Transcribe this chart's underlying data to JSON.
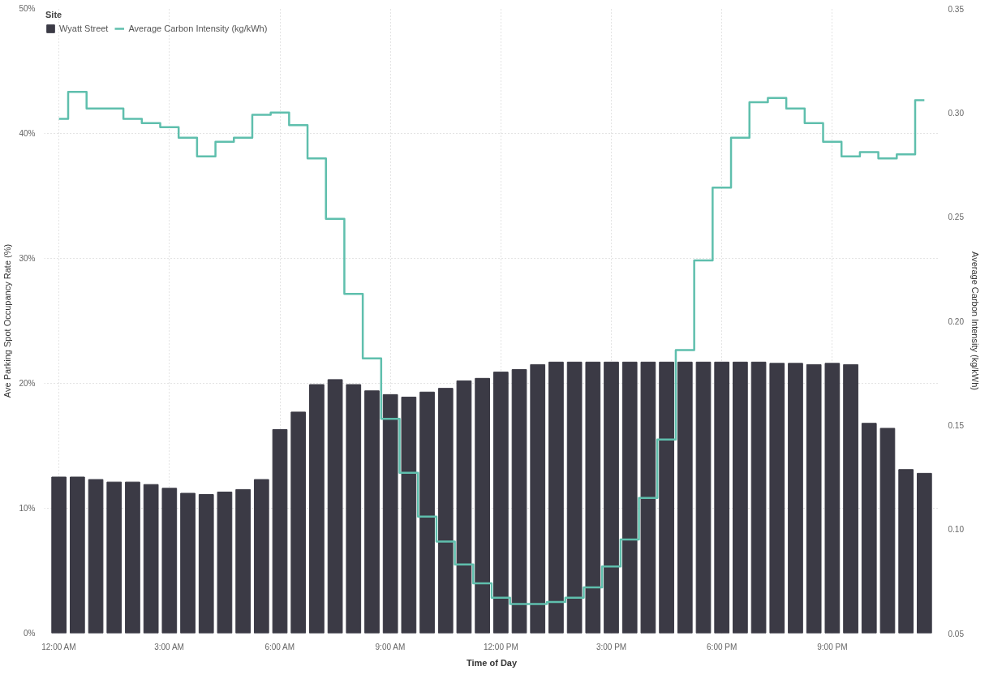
{
  "chart_data": {
    "type": "bar",
    "xlabel": "Time of Day",
    "ylabel": "Ave Parking Spot Occupancy Rate (%)",
    "y2label": "Average Carbon Intensity (kg/kWh)",
    "legend_title": "Site",
    "legend": "top left",
    "grid": true,
    "x": [
      0,
      0.5,
      1,
      1.5,
      2,
      2.5,
      3,
      3.5,
      4,
      4.5,
      5,
      5.5,
      6,
      6.5,
      7,
      7.5,
      8,
      8.5,
      9,
      9.5,
      10,
      10.5,
      11,
      11.5,
      12,
      12.5,
      13,
      13.5,
      14,
      14.5,
      15,
      15.5,
      16,
      16.5,
      17,
      17.5,
      18,
      18.5,
      19,
      19.5,
      20,
      20.5,
      21,
      21.5,
      22,
      22.5,
      23,
      23.5
    ],
    "xlim": [
      -0.4,
      23.9
    ],
    "xticks": [
      {
        "value": 0,
        "label": "12:00 AM"
      },
      {
        "value": 3,
        "label": "3:00 AM"
      },
      {
        "value": 6,
        "label": "6:00 AM"
      },
      {
        "value": 9,
        "label": "9:00 AM"
      },
      {
        "value": 12,
        "label": "12:00 PM"
      },
      {
        "value": 15,
        "label": "3:00 PM"
      },
      {
        "value": 18,
        "label": "6:00 PM"
      },
      {
        "value": 21,
        "label": "9:00 PM"
      }
    ],
    "ylim": [
      0,
      50
    ],
    "yticks": [
      {
        "value": 0,
        "label": "0%"
      },
      {
        "value": 10,
        "label": "10%"
      },
      {
        "value": 20,
        "label": "20%"
      },
      {
        "value": 30,
        "label": "30%"
      },
      {
        "value": 40,
        "label": "40%"
      },
      {
        "value": 50,
        "label": "50%"
      }
    ],
    "y2lim": [
      0.05,
      0.35
    ],
    "y2ticks": [
      {
        "value": 0.05,
        "label": "0.05"
      },
      {
        "value": 0.1,
        "label": "0.10"
      },
      {
        "value": 0.15,
        "label": "0.15"
      },
      {
        "value": 0.2,
        "label": "0.20"
      },
      {
        "value": 0.25,
        "label": "0.25"
      },
      {
        "value": 0.3,
        "label": "0.30"
      },
      {
        "value": 0.35,
        "label": "0.35"
      }
    ],
    "series": [
      {
        "name": "Wyatt Street",
        "color": "#3b3a45",
        "values": [
          12.5,
          12.5,
          12.3,
          12.1,
          12.1,
          11.9,
          11.6,
          11.2,
          11.1,
          11.3,
          11.5,
          12.3,
          16.3,
          17.7,
          19.9,
          20.3,
          19.9,
          19.4,
          19.1,
          18.9,
          19.3,
          19.6,
          20.2,
          20.4,
          20.9,
          21.1,
          21.5,
          21.7,
          21.7,
          21.7,
          21.7,
          21.7,
          21.7,
          21.7,
          21.7,
          21.7,
          21.7,
          21.7,
          21.7,
          21.6,
          21.6,
          21.5,
          21.6,
          21.5,
          16.8,
          16.4,
          13.1,
          12.8
        ]
      },
      {
        "name": "Average Carbon Intensity (kg/kWh)",
        "type": "step",
        "axis": "y2",
        "color": "#5fbfad",
        "values": [
          0.297,
          0.31,
          0.302,
          0.302,
          0.297,
          0.295,
          0.293,
          0.288,
          0.279,
          0.286,
          0.288,
          0.299,
          0.3,
          0.294,
          0.278,
          0.249,
          0.213,
          0.182,
          0.153,
          0.127,
          0.106,
          0.094,
          0.083,
          0.074,
          0.067,
          0.064,
          0.064,
          0.065,
          0.067,
          0.072,
          0.082,
          0.095,
          0.115,
          0.143,
          0.186,
          0.229,
          0.264,
          0.288,
          0.305,
          0.307,
          0.302,
          0.295,
          0.286,
          0.279,
          0.281,
          0.278,
          0.28,
          0.306
        ]
      }
    ]
  }
}
